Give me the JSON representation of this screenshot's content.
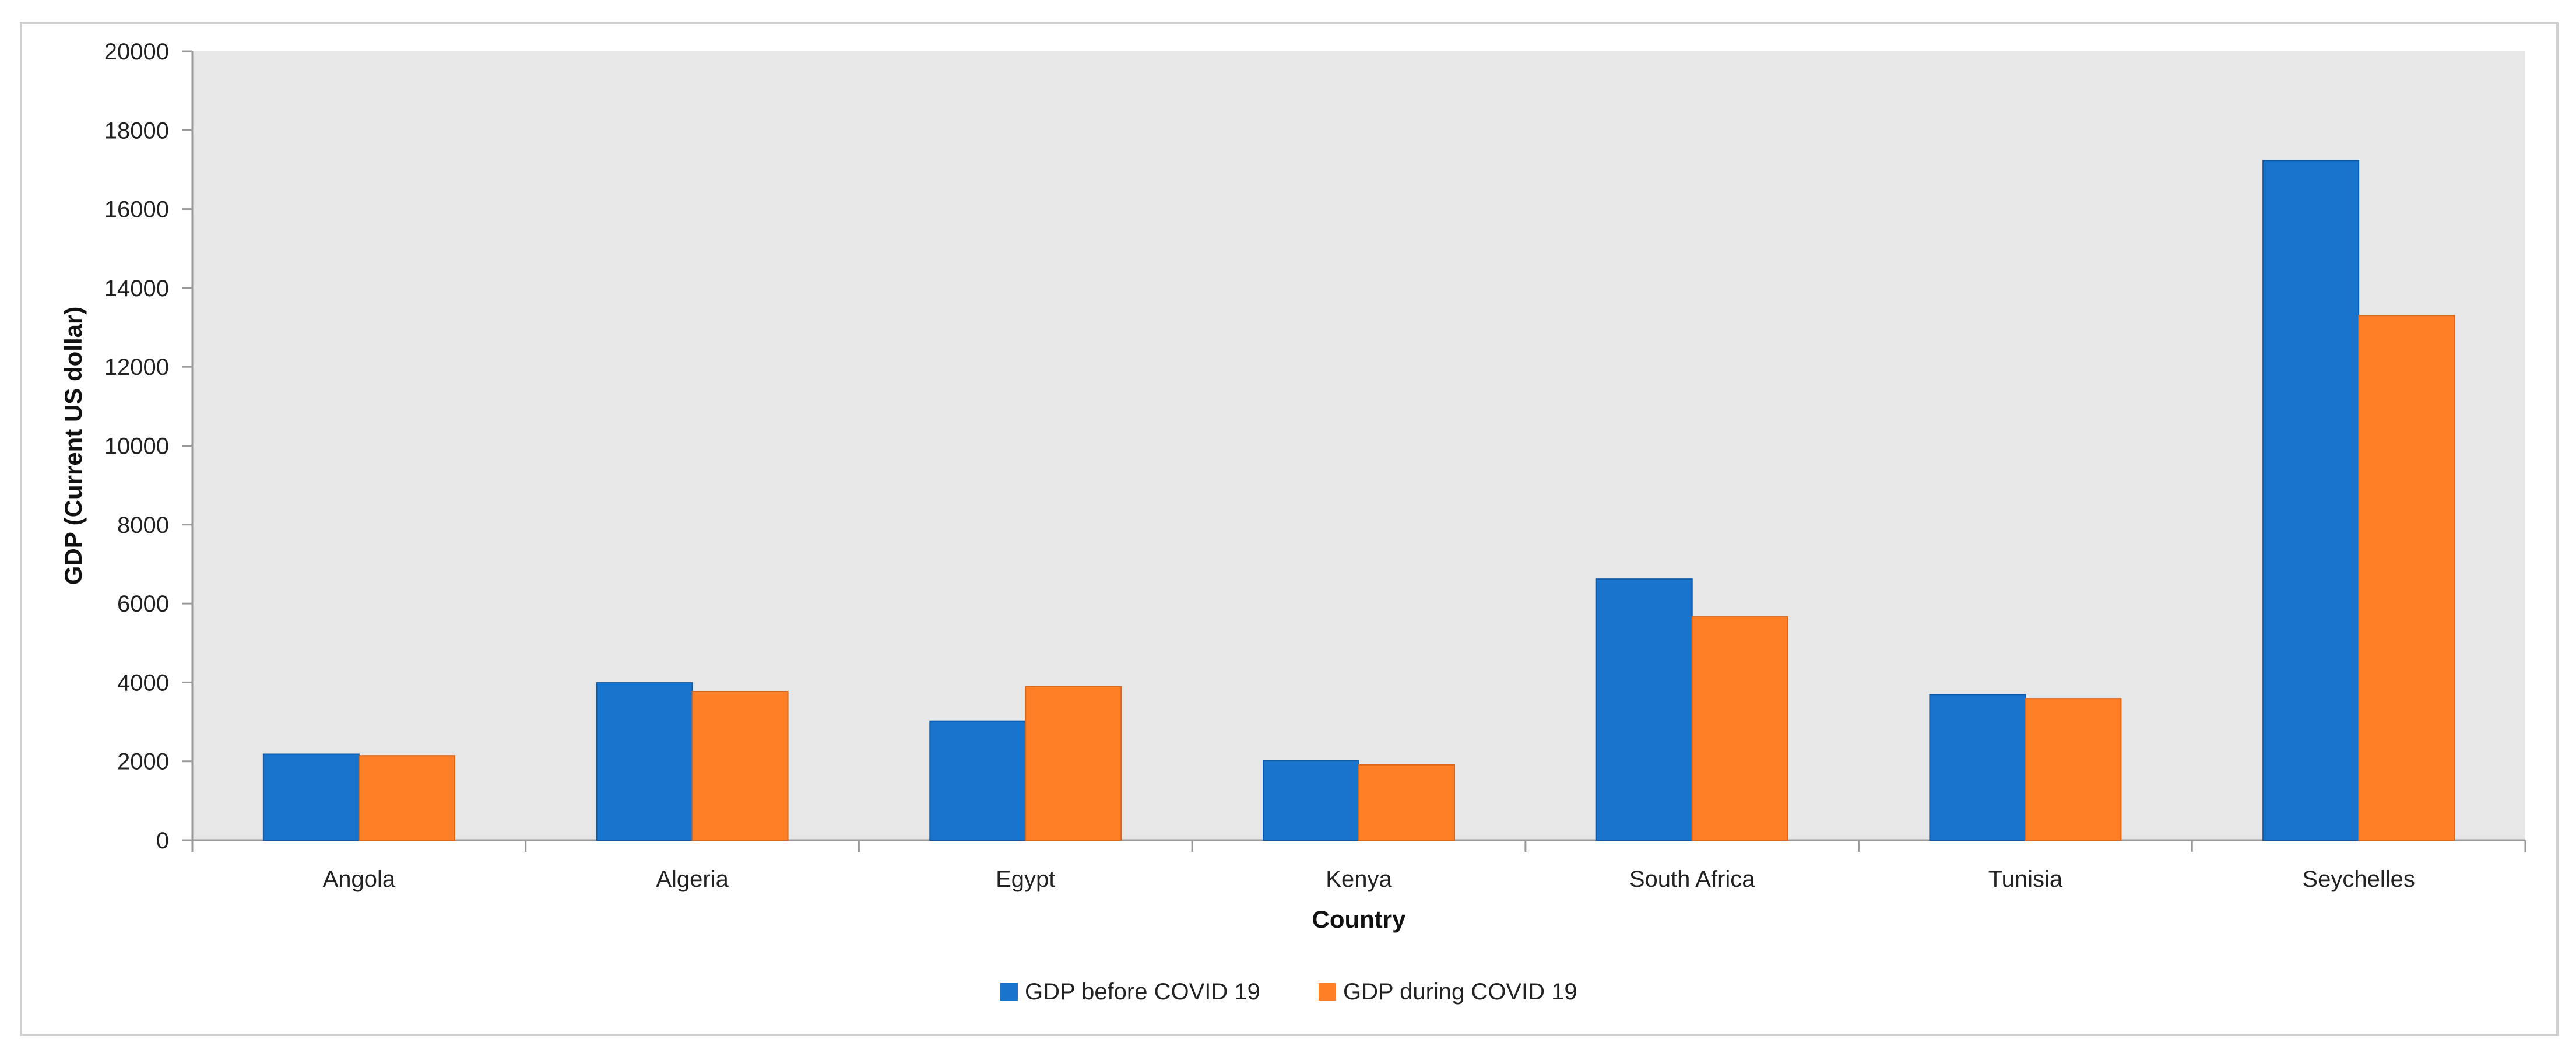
{
  "chart_data": {
    "type": "bar",
    "title": "",
    "xlabel": "Country",
    "ylabel": "GDP (Current US dollar)",
    "categories": [
      "Angola",
      "Algeria",
      "Egypt",
      "Kenya",
      "South Africa",
      "Tunisia",
      "Seychelles"
    ],
    "series": [
      {
        "name": "GDP before COVID 19",
        "color": "#1874cd",
        "values": [
          2180,
          3990,
          3020,
          2010,
          6620,
          3690,
          17230
        ]
      },
      {
        "name": "GDP during COVID 19",
        "color": "#ff7f27",
        "values": [
          2140,
          3770,
          3890,
          1910,
          5660,
          3590,
          13300
        ]
      }
    ],
    "ylim": [
      0,
      20000
    ],
    "yticks": [
      0,
      2000,
      4000,
      6000,
      8000,
      10000,
      12000,
      14000,
      16000,
      18000,
      20000
    ],
    "plot_background": "#e7e7e7",
    "grid": false,
    "legend": "bottom-center"
  }
}
